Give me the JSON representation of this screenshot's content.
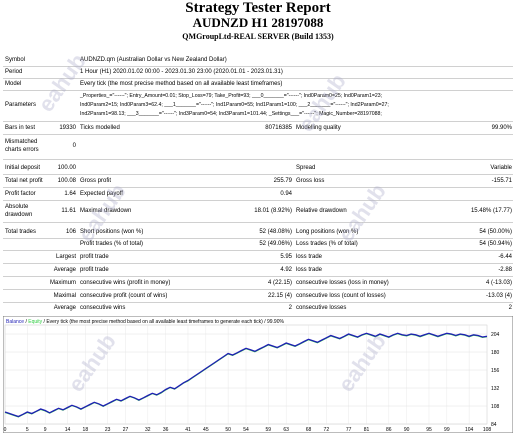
{
  "header": {
    "title": "Strategy Tester Report",
    "subtitle": "AUDNZD H1 28197088",
    "server": "QMGroupLtd-REAL SERVER (Build 1353)"
  },
  "info": {
    "symbol_label": "Symbol",
    "symbol_value": "AUDNZD.qm (Australian Dollar vs New Zealand Dollar)",
    "period_label": "Period",
    "period_value": "1 Hour (H1) 2020.01.02 00:00 - 2023.01.30 23:00 (2020.01.01 - 2023.01.31)",
    "model_label": "Model",
    "model_value": "Every tick (the most precise method based on all available least timeframes)",
    "params_label": "Parameters",
    "params_line1": "_Properties_=\"------\"; Entry_Amount=0.01; Stop_Loss=79; Take_Profit=93; ___0_______=\"------\"; Ind0Param0=25; Ind0Param1=23;",
    "params_line2": "Ind0Param2=15; Ind0Param3=62.4; ___1_______=\"------\"; Ind1Param0=55; Ind1Param1=100; ___2_______=\"------\"; Ind2Param0=27;",
    "params_line3": "Ind2Param1=98.13; ___3_______=\"------\"; Ind3Param0=54; Ind3Param1=101.44; _Settings___=\"------\"; Magic_Number=28197088;"
  },
  "bars": {
    "bars_label": "Bars in test",
    "bars_value": "19330",
    "ticks_label": "Ticks modelled",
    "ticks_value": "80716385",
    "quality_label": "Modelling quality",
    "quality_value": "99.90%",
    "mismatch_label1": "Mismatched",
    "mismatch_label2": "charts errors",
    "mismatch_value": "0"
  },
  "stats": {
    "initial_label": "Initial deposit",
    "initial_value": "100.00",
    "spread_label": "Spread",
    "spread_value": "Variable",
    "net_label": "Total net profit",
    "net_value": "100.08",
    "gross_profit_label": "Gross profit",
    "gross_profit_value": "255.79",
    "gross_loss_label": "Gross loss",
    "gross_loss_value": "-155.71",
    "pf_label": "Profit factor",
    "pf_value": "1.64",
    "ep_label": "Expected payoff",
    "ep_value": "0.94",
    "abs_dd_label1": "Absolute",
    "abs_dd_label2": "drawdown",
    "abs_dd_value": "11.61",
    "max_dd_label": "Maximal drawdown",
    "max_dd_value": "18.01 (8.92%)",
    "rel_dd_label": "Relative drawdown",
    "rel_dd_value": "15.48% (17.77)"
  },
  "trades": {
    "total_label": "Total trades",
    "total_value": "106",
    "short_label": "Short positions (won %)",
    "short_value": "52 (48.08%)",
    "long_label": "Long positions (won %)",
    "long_value": "54 (50.00%)",
    "profit_trades_label": "Profit trades (% of total)",
    "profit_trades_value": "52 (49.06%)",
    "loss_trades_label": "Loss trades (% of total)",
    "loss_trades_value": "54 (50.94%)",
    "largest_label": "Largest",
    "largest_profit_label": "profit trade",
    "largest_profit_value": "5.95",
    "largest_loss_label": "loss trade",
    "largest_loss_value": "-6.44",
    "average_label": "Average",
    "average_profit_label": "profit trade",
    "average_profit_value": "4.92",
    "average_loss_label": "loss trade",
    "average_loss_value": "-2.88",
    "maximum_label": "Maximum",
    "max_wins_label": "consecutive wins (profit in money)",
    "max_wins_value": "4 (22.15)",
    "max_losses_label": "consecutive losses (loss in money)",
    "max_losses_value": "4 (-13.03)",
    "maximal_label": "Maximal",
    "maximal_profit_label": "consecutive profit (count of wins)",
    "maximal_profit_value": "22.15 (4)",
    "maximal_loss_label": "consecutive loss (count of losses)",
    "maximal_loss_value": "-13.03 (4)",
    "avg_label": "Average",
    "avg_wins_label": "consecutive wins",
    "avg_wins_value": "2",
    "avg_losses_label": "consecutive losses",
    "avg_losses_value": "2"
  },
  "chart_data": {
    "type": "line",
    "legend_balance": "Balance",
    "legend_sep": " / ",
    "legend_equity": "Equity",
    "legend_rest": " / Every tick (the most precise method based on all available least timeframes to generate each tick) / 99.90%",
    "x_ticks": [
      "0",
      "5",
      "9",
      "14",
      "18",
      "23",
      "27",
      "32",
      "36",
      "41",
      "45",
      "50",
      "54",
      "59",
      "63",
      "68",
      "72",
      "77",
      "81",
      "86",
      "90",
      "95",
      "99",
      "104",
      "108"
    ],
    "y_ticks": [
      "204",
      "180",
      "156",
      "132",
      "108",
      "84"
    ],
    "ylim": [
      84,
      216
    ],
    "xlim": [
      0,
      108
    ],
    "balance_color": "#1f1fb4",
    "equity_color": "#2ecc40",
    "values": [
      100,
      98,
      96,
      94,
      97,
      100,
      98,
      101,
      104,
      102,
      99,
      102,
      105,
      103,
      106,
      109,
      107,
      104,
      107,
      110,
      113,
      111,
      108,
      111,
      114,
      117,
      115,
      118,
      121,
      119,
      116,
      119,
      122,
      125,
      123,
      126,
      130,
      133,
      131,
      135,
      139,
      142,
      146,
      150,
      154,
      158,
      162,
      166,
      170,
      174,
      178,
      176,
      179,
      182,
      185,
      183,
      181,
      184,
      187,
      190,
      188,
      186,
      189,
      192,
      190,
      188,
      191,
      194,
      197,
      195,
      193,
      196,
      199,
      202,
      200,
      198,
      201,
      204,
      202,
      200,
      203,
      205,
      203,
      201,
      204,
      202,
      200,
      203,
      205,
      203,
      202,
      204,
      203,
      201,
      203,
      205,
      203,
      201,
      203,
      205,
      204,
      202,
      204,
      203,
      201,
      203,
      202,
      200,
      201
    ]
  }
}
